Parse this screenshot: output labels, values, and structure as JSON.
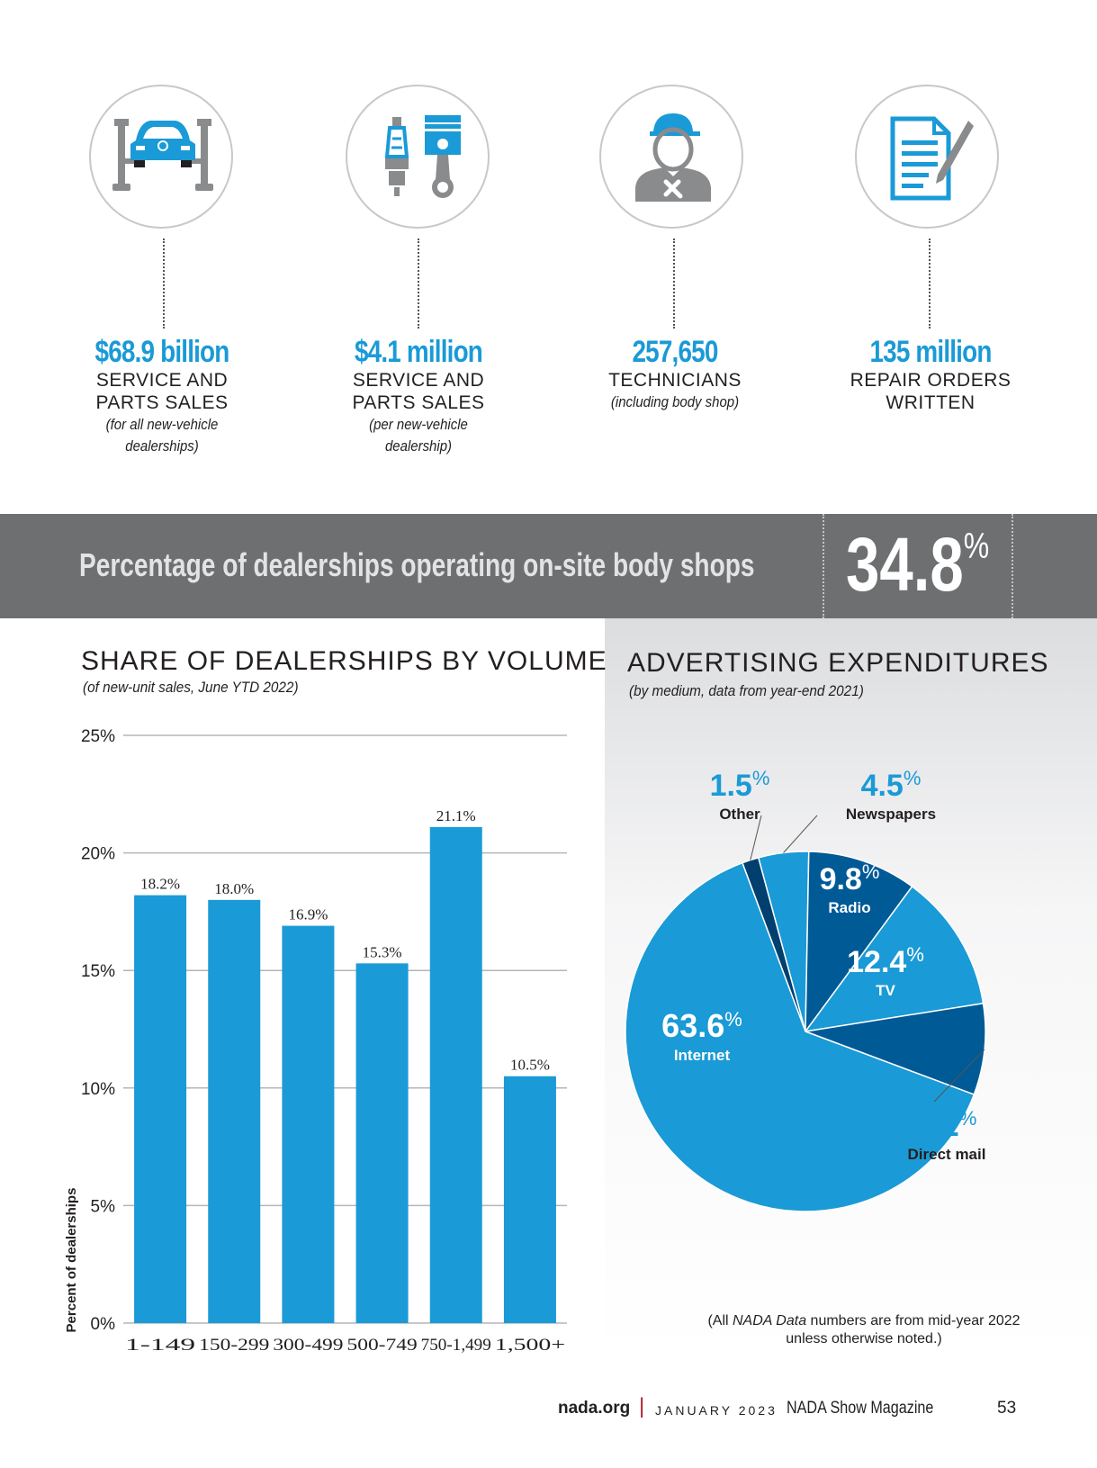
{
  "stats": [
    {
      "value": "$68.9 billion",
      "line1": "SERVICE AND",
      "line2": "PARTS SALES",
      "note1": "(for all new-vehicle",
      "note2": "dealerships)",
      "icon": "car-lift-icon"
    },
    {
      "value": "$4.1 million",
      "line1": "SERVICE AND",
      "line2": "PARTS SALES",
      "note1": "(per new-vehicle",
      "note2": "dealership)",
      "icon": "spark-plug-piston-icon"
    },
    {
      "value": "257,650",
      "line1": "TECHNICIANS",
      "note1": "(including body shop)",
      "icon": "technician-icon"
    },
    {
      "value": "135 million",
      "line1": "REPAIR ORDERS",
      "line2": "WRITTEN",
      "icon": "document-pen-icon"
    }
  ],
  "banner": {
    "label": "Percentage of dealerships operating on-site body shops",
    "value": "34.8",
    "unit": "%"
  },
  "bar_section": {
    "title": "SHARE OF DEALERSHIPS BY VOLUME",
    "subtitle": "(of new-unit sales, June YTD 2022)"
  },
  "pie_section": {
    "title": "ADVERTISING EXPENDITURES",
    "subtitle": "(by medium, data from year-end 2021)"
  },
  "note": {
    "prefix": "(All ",
    "italic": "NADA Data",
    "suffix": " numbers are from mid-year 2022",
    "line2": "unless otherwise noted.)"
  },
  "footer": {
    "site": "nada.org",
    "separator": "|",
    "month": "JANUARY 2023",
    "magazine": "NADA Show Magazine",
    "page": "53"
  },
  "colors": {
    "accent": "#1a9ad6",
    "dark_blue": "#005a96",
    "banner": "#6e6f71",
    "navy": "#003f6e"
  },
  "chart_data": [
    {
      "type": "bar",
      "title": "SHARE OF DEALERSHIPS BY VOLUME",
      "ylabel": "Percent of dealerships",
      "categories": [
        "1-149",
        "150-299",
        "300-499",
        "500-749",
        "750-1,499",
        "1,500+"
      ],
      "values": [
        18.2,
        18.0,
        16.9,
        15.3,
        21.1,
        10.5
      ],
      "value_labels": [
        "18.2%",
        "18.0%",
        "16.9%",
        "15.3%",
        "21.1%",
        "10.5%"
      ],
      "yticks": [
        "0%",
        "5%",
        "10%",
        "15%",
        "20%",
        "25%"
      ],
      "ylim": [
        0,
        25
      ],
      "grid": true
    },
    {
      "type": "pie",
      "title": "ADVERTISING EXPENDITURES",
      "slices": [
        {
          "label": "Other",
          "value": 1.5,
          "pct": "1.5",
          "color": "#003f6e"
        },
        {
          "label": "Newspapers",
          "value": 4.5,
          "pct": "4.5",
          "color": "#1a9ad6"
        },
        {
          "label": "Radio",
          "value": 9.8,
          "pct": "9.8",
          "color": "#005a96"
        },
        {
          "label": "TV",
          "value": 12.4,
          "pct": "12.4",
          "color": "#1a9ad6"
        },
        {
          "label": "Direct mail",
          "value": 8.2,
          "pct": "8.2",
          "color": "#005a96"
        },
        {
          "label": "Internet",
          "value": 63.6,
          "pct": "63.6",
          "color": "#1a9ad6"
        }
      ]
    }
  ]
}
